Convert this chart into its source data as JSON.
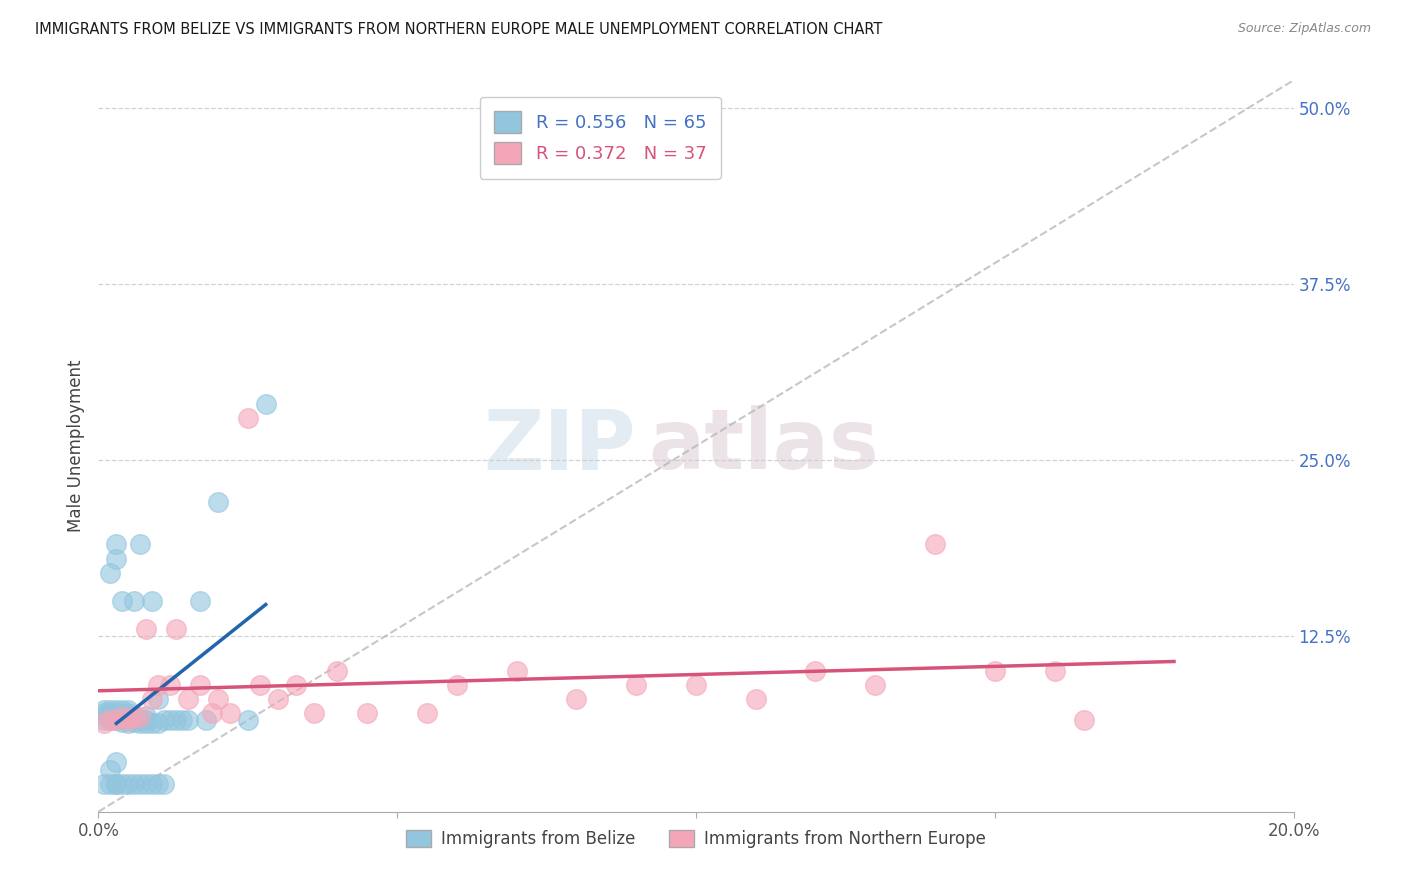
{
  "title": "IMMIGRANTS FROM BELIZE VS IMMIGRANTS FROM NORTHERN EUROPE MALE UNEMPLOYMENT CORRELATION CHART",
  "source": "Source: ZipAtlas.com",
  "ylabel": "Male Unemployment",
  "xlim": [
    0.0,
    0.2
  ],
  "ylim": [
    0.0,
    0.52
  ],
  "legend_belize_R": "0.556",
  "legend_belize_N": "65",
  "legend_north_europe_R": "0.372",
  "legend_north_europe_N": "37",
  "legend_label_belize": "Immigrants from Belize",
  "legend_label_north_europe": "Immigrants from Northern Europe",
  "blue_color": "#92c5de",
  "pink_color": "#f4a6b8",
  "blue_line_color": "#2166ac",
  "pink_line_color": "#d6537a",
  "right_axis_color": "#4472c4",
  "watermark_zip": "ZIP",
  "watermark_atlas": "atlas",
  "blue_scatter_x": [
    0.001,
    0.001,
    0.001,
    0.001,
    0.002,
    0.002,
    0.002,
    0.002,
    0.002,
    0.002,
    0.003,
    0.003,
    0.003,
    0.003,
    0.003,
    0.003,
    0.003,
    0.004,
    0.004,
    0.004,
    0.004,
    0.004,
    0.005,
    0.005,
    0.005,
    0.005,
    0.005,
    0.006,
    0.006,
    0.006,
    0.006,
    0.007,
    0.007,
    0.007,
    0.008,
    0.008,
    0.008,
    0.009,
    0.009,
    0.01,
    0.01,
    0.011,
    0.012,
    0.013,
    0.014,
    0.015,
    0.017,
    0.018,
    0.02,
    0.025,
    0.028,
    0.001,
    0.002,
    0.003,
    0.003,
    0.004,
    0.005,
    0.006,
    0.007,
    0.008,
    0.009,
    0.01,
    0.011,
    0.002,
    0.003
  ],
  "blue_scatter_y": [
    0.065,
    0.068,
    0.07,
    0.072,
    0.065,
    0.067,
    0.068,
    0.07,
    0.072,
    0.17,
    0.065,
    0.067,
    0.068,
    0.07,
    0.072,
    0.18,
    0.19,
    0.064,
    0.066,
    0.068,
    0.072,
    0.15,
    0.063,
    0.066,
    0.068,
    0.07,
    0.072,
    0.064,
    0.066,
    0.068,
    0.15,
    0.063,
    0.065,
    0.19,
    0.063,
    0.065,
    0.068,
    0.063,
    0.15,
    0.063,
    0.08,
    0.065,
    0.065,
    0.065,
    0.065,
    0.065,
    0.15,
    0.065,
    0.22,
    0.065,
    0.29,
    0.02,
    0.02,
    0.02,
    0.02,
    0.02,
    0.02,
    0.02,
    0.02,
    0.02,
    0.02,
    0.02,
    0.02,
    0.03,
    0.035
  ],
  "pink_scatter_x": [
    0.001,
    0.002,
    0.003,
    0.004,
    0.005,
    0.006,
    0.007,
    0.008,
    0.009,
    0.01,
    0.012,
    0.013,
    0.015,
    0.017,
    0.019,
    0.02,
    0.022,
    0.025,
    0.027,
    0.03,
    0.033,
    0.036,
    0.04,
    0.045,
    0.055,
    0.06,
    0.07,
    0.08,
    0.09,
    0.1,
    0.11,
    0.12,
    0.13,
    0.14,
    0.15,
    0.16,
    0.165
  ],
  "pink_scatter_y": [
    0.063,
    0.065,
    0.065,
    0.067,
    0.065,
    0.067,
    0.067,
    0.13,
    0.08,
    0.09,
    0.09,
    0.13,
    0.08,
    0.09,
    0.07,
    0.08,
    0.07,
    0.28,
    0.09,
    0.08,
    0.09,
    0.07,
    0.1,
    0.07,
    0.07,
    0.09,
    0.1,
    0.08,
    0.09,
    0.09,
    0.08,
    0.1,
    0.09,
    0.19,
    0.1,
    0.1,
    0.065
  ]
}
